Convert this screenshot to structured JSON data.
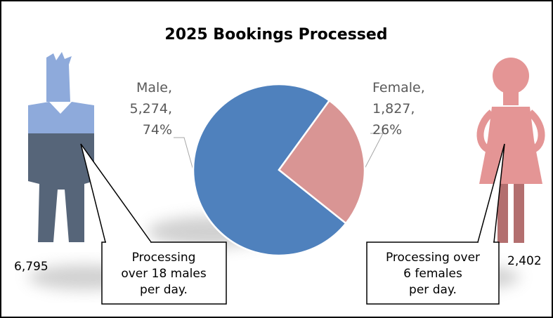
{
  "chart_data": {
    "type": "pie",
    "title": "2025 Bookings Processed",
    "categories": [
      "Male",
      "Female"
    ],
    "values": [
      5274,
      1827
    ],
    "value_labels": [
      "5,274",
      "1,827"
    ],
    "percents": [
      74,
      26
    ],
    "percent_labels": [
      "74%",
      "26%"
    ],
    "label_separator": ",",
    "colors": [
      "#4f81bd",
      "#d99594"
    ]
  },
  "figures": [
    {
      "total": "6,795",
      "note": [
        "Processing",
        "over 18 males",
        "per day."
      ]
    },
    {
      "total": "2,402",
      "note": [
        "Processing over",
        "6 females",
        "per day."
      ]
    }
  ]
}
